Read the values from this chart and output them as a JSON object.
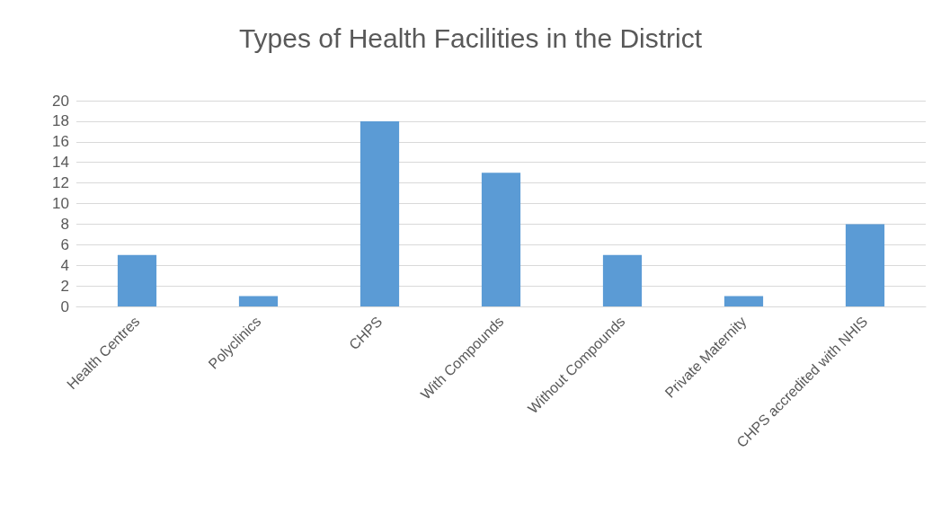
{
  "chart_data": {
    "type": "bar",
    "title": "Types of Health Facilities in the District",
    "categories": [
      "Health Centres",
      "Polyclinics",
      "CHPS",
      "With Compounds",
      "Without Compounds",
      "Private Maternity",
      "CHPS accredited with NHIS"
    ],
    "values": [
      5,
      1,
      18,
      13,
      5,
      1,
      8
    ],
    "color": "#5b9bd5",
    "ylim": [
      0,
      20
    ],
    "yticks": [
      0,
      2,
      4,
      6,
      8,
      10,
      12,
      14,
      16,
      18,
      20
    ],
    "grid": "y"
  }
}
